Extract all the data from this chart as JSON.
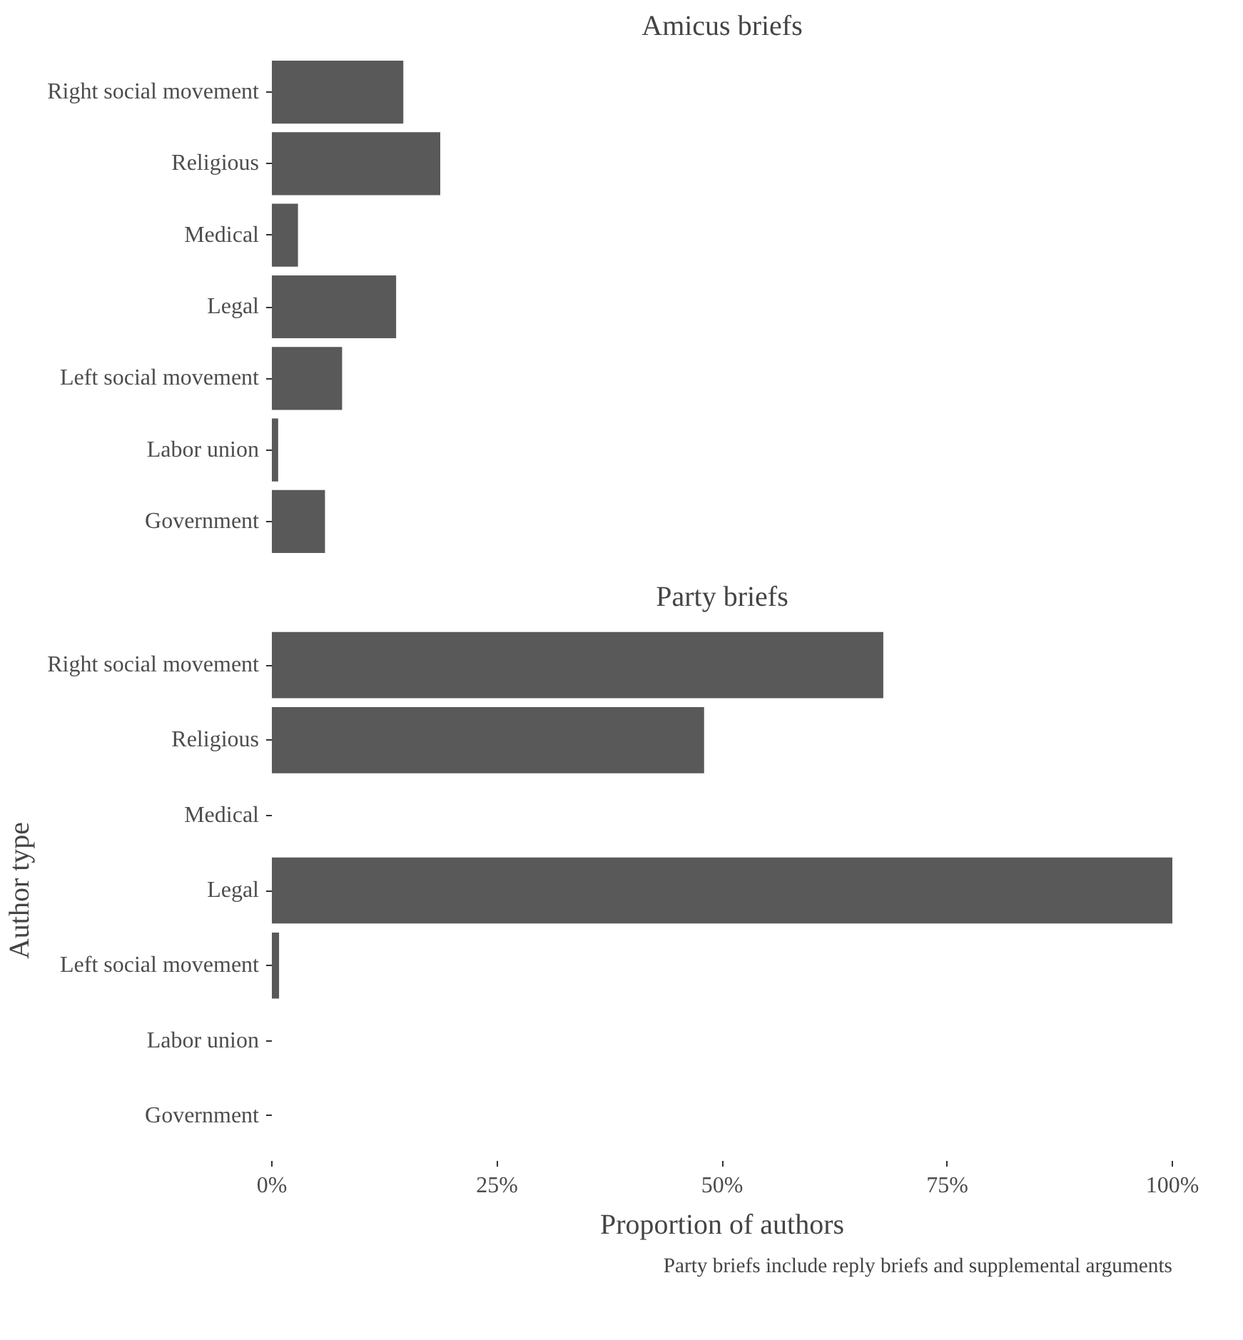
{
  "chart_data": [
    {
      "type": "bar",
      "orientation": "horizontal",
      "title": "Amicus briefs",
      "categories": [
        "Right social movement",
        "Religious",
        "Medical",
        "Legal",
        "Left social movement",
        "Labor union",
        "Government"
      ],
      "values": [
        14.6,
        18.7,
        2.9,
        13.8,
        7.8,
        0.7,
        5.9
      ],
      "color": "#595959",
      "xlim": [
        0,
        100
      ],
      "tick_labels": "y",
      "grid": false
    },
    {
      "type": "bar",
      "orientation": "horizontal",
      "title": "Party briefs",
      "xlabel": "Proportion of authors",
      "ylabel": "Author type",
      "annotations": [
        "Party briefs include reply briefs and supplemental arguments"
      ],
      "categories": [
        "Right social movement",
        "Religious",
        "Medical",
        "Legal",
        "Left social movement",
        "Labor union",
        "Government"
      ],
      "values": [
        67.9,
        48,
        0,
        100,
        0.8,
        0,
        0
      ],
      "color": "#595959",
      "xlim": [
        0,
        100
      ],
      "xticks": [
        {
          "value": 0,
          "label": "0%"
        },
        {
          "value": 25,
          "label": "25%"
        },
        {
          "value": 50,
          "label": "50%"
        },
        {
          "value": 75,
          "label": "75%"
        },
        {
          "value": 100,
          "label": "100%"
        }
      ],
      "grid": false
    }
  ]
}
